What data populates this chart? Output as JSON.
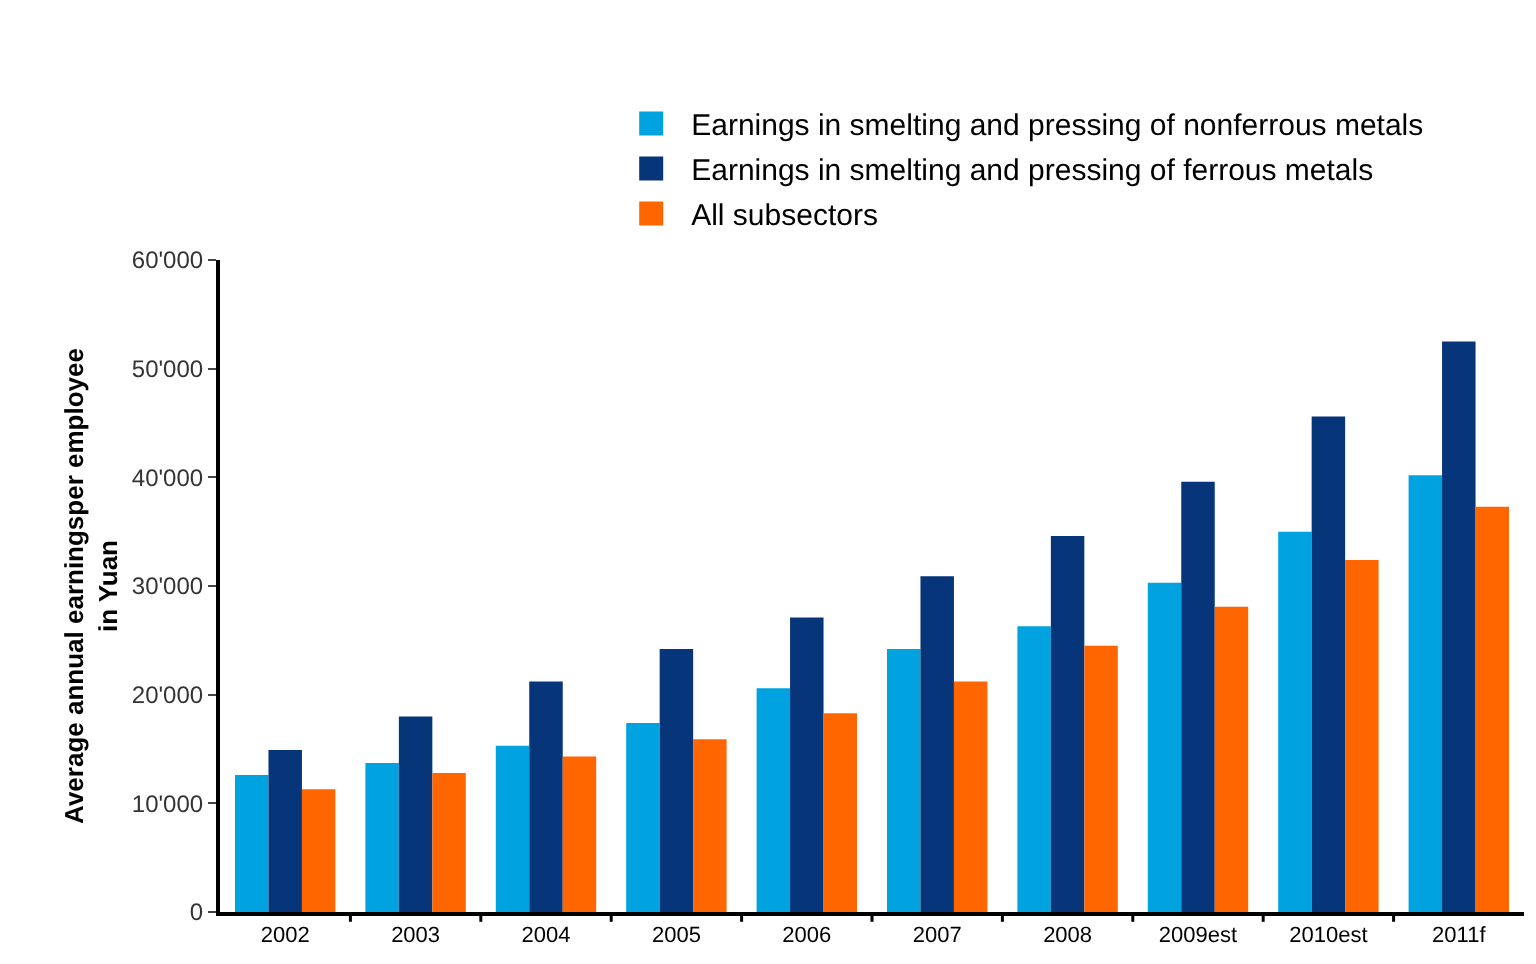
{
  "chart_data": {
    "type": "bar",
    "ylabel": "Average annual earningsper employee\nin Yuan",
    "categories": [
      "2002",
      "2003",
      "2004",
      "2005",
      "2006",
      "2007",
      "2008",
      "2009est",
      "2010est",
      "2011f"
    ],
    "series": [
      {
        "name": "Earnings in smelting and pressing of nonferrous metals",
        "color": "#00a3e0",
        "values": [
          12600,
          13700,
          15300,
          17400,
          20600,
          24200,
          26300,
          30300,
          35000,
          40200
        ]
      },
      {
        "name": "Earnings in smelting and pressing of ferrous metals",
        "color": "#06357a",
        "values": [
          14900,
          18000,
          21200,
          24200,
          27100,
          30900,
          34600,
          39600,
          45600,
          52500
        ]
      },
      {
        "name": "All subsectors",
        "color": "#ff6600",
        "values": [
          11300,
          12800,
          14300,
          15900,
          18300,
          21200,
          24500,
          28100,
          32400,
          37300
        ]
      }
    ],
    "ylim": [
      0,
      60000
    ],
    "yticks": [
      0,
      {
        "value": 10000,
        "label": "10'000"
      },
      {
        "value": 20000,
        "label": "20'000"
      },
      {
        "value": 30000,
        "label": "30'000"
      },
      {
        "value": 40000,
        "label": "40'000"
      },
      {
        "value": 50000,
        "label": "50'000"
      },
      {
        "value": 60000,
        "label": "60'000"
      }
    ],
    "grid": false,
    "legend": "top"
  }
}
